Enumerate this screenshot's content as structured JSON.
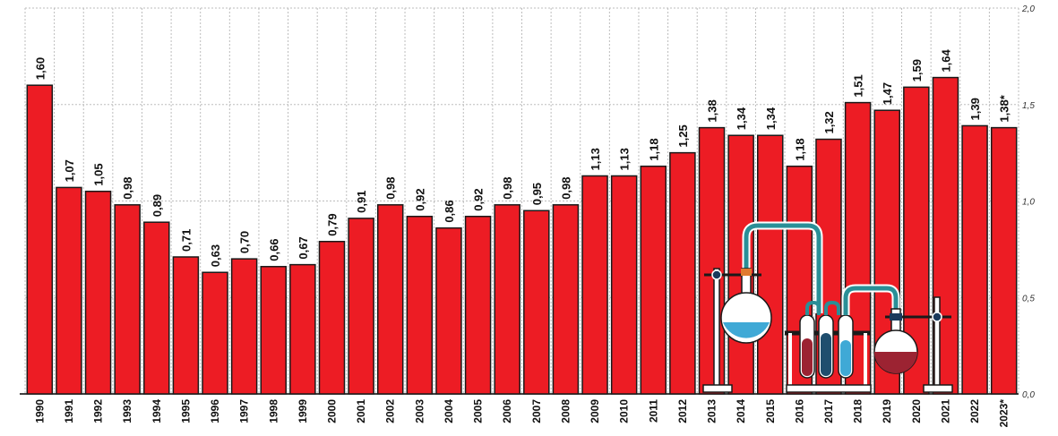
{
  "chart_data": {
    "type": "bar",
    "categories": [
      "1990",
      "1991",
      "1992",
      "1993",
      "1994",
      "1995",
      "1996",
      "1997",
      "1998",
      "1999",
      "2000",
      "2001",
      "2002",
      "2003",
      "2004",
      "2005",
      "2006",
      "2007",
      "2008",
      "2009",
      "2010",
      "2011",
      "2012",
      "2013",
      "2014",
      "2015",
      "2016",
      "2017",
      "2018",
      "2019",
      "2020",
      "2021",
      "2022",
      "2023*"
    ],
    "values": [
      1.6,
      1.07,
      1.05,
      0.98,
      0.89,
      0.71,
      0.63,
      0.7,
      0.66,
      0.67,
      0.79,
      0.91,
      0.98,
      0.92,
      0.86,
      0.92,
      0.98,
      0.95,
      0.98,
      1.13,
      1.13,
      1.18,
      1.25,
      1.38,
      1.34,
      1.34,
      1.18,
      1.32,
      1.51,
      1.47,
      1.59,
      1.64,
      1.39,
      1.38
    ],
    "value_labels": [
      "1,60",
      "1,07",
      "1,05",
      "0,98",
      "0,89",
      "0,71",
      "0,63",
      "0,70",
      "0,66",
      "0,67",
      "0,79",
      "0,91",
      "0,98",
      "0,92",
      "0,86",
      "0,92",
      "0,98",
      "0,95",
      "0,98",
      "1,13",
      "1,13",
      "1,18",
      "1,25",
      "1,38",
      "1,34",
      "1,34",
      "1,18",
      "1,32",
      "1,51",
      "1,47",
      "1,59",
      "1,64",
      "1,39",
      "1,38*"
    ],
    "yticks": [
      0,
      0.5,
      1.0,
      1.5,
      2.0
    ],
    "ytick_labels": [
      "0,0",
      "0,5",
      "1,0",
      "1,5",
      "2,0"
    ],
    "ylim": [
      0,
      2.0
    ],
    "y_axis_side": "right",
    "grid": true,
    "bar_color": "#ed1c24",
    "illustration": "chemistry-lab-flasks-illustration"
  }
}
